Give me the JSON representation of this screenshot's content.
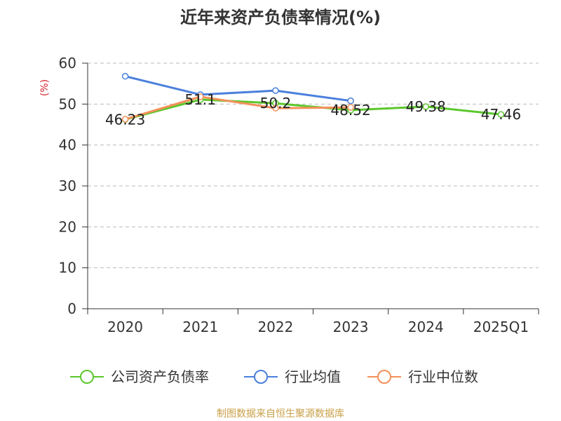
{
  "chart_data": {
    "type": "line",
    "title": "近年来资产负债率情况(%)",
    "ylabel": "(%)",
    "xlabel": "",
    "categories": [
      "2020",
      "2021",
      "2022",
      "2023",
      "2024",
      "2025Q1"
    ],
    "ylim": [
      0,
      60
    ],
    "yticks": [
      0,
      10,
      20,
      30,
      40,
      50,
      60
    ],
    "grid": true,
    "legend_position": "bottom",
    "series": [
      {
        "name": "公司资产负债率",
        "color": "#5cc72d",
        "values": [
          46.23,
          51.1,
          50.2,
          48.52,
          49.38,
          47.46
        ],
        "labels": [
          "46.23",
          "51.1",
          "50.2",
          "48.52",
          "49.38",
          "47.46"
        ]
      },
      {
        "name": "行业均值",
        "color": "#4a7fdc",
        "values": [
          56.8,
          52.3,
          53.3,
          50.8,
          null,
          null
        ]
      },
      {
        "name": "行业中位数",
        "color": "#f4905a",
        "values": [
          46.3,
          51.8,
          49.0,
          49.2,
          null,
          null
        ]
      }
    ]
  },
  "footer": {
    "source": "制图数据来自恒生聚源数据库"
  }
}
